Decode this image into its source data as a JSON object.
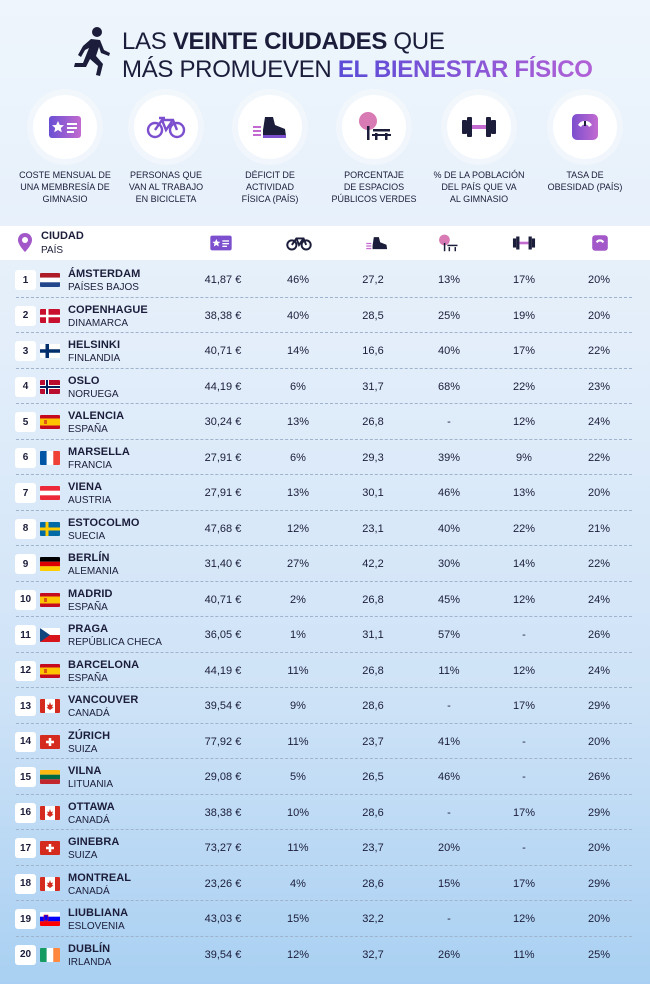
{
  "title": {
    "line1_pre": "LAS ",
    "line1_bold": "VEINTE CIUDADES",
    "line1_post": " QUE",
    "line2_pre": "MÁS PROMUEVEN ",
    "line2_accent": "EL BIENESTAR FÍSICO"
  },
  "metrics": [
    {
      "icon": "membership-card-icon",
      "line1": "COSTE MENSUAL DE",
      "line2": "UNA MEMBRESÍA DE",
      "line3": "GIMNASIO"
    },
    {
      "icon": "bicycle-icon",
      "line1": "PERSONAS QUE",
      "line2": "VAN AL TRABAJO",
      "line3": "EN BICICLETA"
    },
    {
      "icon": "sneaker-icon",
      "line1": "DÉFICIT DE",
      "line2": "ACTIVIDAD",
      "line3": "FÍSICA (PAÍS)"
    },
    {
      "icon": "park-icon",
      "line1": "PORCENTAJE",
      "line2": "DE ESPACIOS",
      "line3": "PÚBLICOS VERDES"
    },
    {
      "icon": "dumbbell-icon",
      "line1": "% DE LA POBLACIÓN",
      "line2": "DEL PAÍS QUE VA",
      "line3": "AL GIMNASIO"
    },
    {
      "icon": "scale-icon",
      "line1": "TASA DE",
      "line2": "OBESIDAD (PAÍS)",
      "line3": ""
    }
  ],
  "table": {
    "header_city": "CIUDAD",
    "header_country": "PAÍS",
    "colors": {
      "accent": "#8b4fc8",
      "pink": "#e07ab0",
      "dark": "#1b1d3a"
    },
    "rows": [
      {
        "rank": "1",
        "city": "ÁMSTERDAM",
        "country": "PAÍSES BAJOS",
        "flag": "nl",
        "gym_cost": "41,87 €",
        "bike": "46%",
        "deficit": "27,2",
        "green": "13%",
        "gym_pop": "17%",
        "obesity": "20%"
      },
      {
        "rank": "2",
        "city": "COPENHAGUE",
        "country": "DINAMARCA",
        "flag": "dk",
        "gym_cost": "38,38 €",
        "bike": "40%",
        "deficit": "28,5",
        "green": "25%",
        "gym_pop": "19%",
        "obesity": "20%"
      },
      {
        "rank": "3",
        "city": "HELSINKI",
        "country": "FINLANDIA",
        "flag": "fi",
        "gym_cost": "40,71 €",
        "bike": "14%",
        "deficit": "16,6",
        "green": "40%",
        "gym_pop": "17%",
        "obesity": "22%"
      },
      {
        "rank": "4",
        "city": "OSLO",
        "country": "NORUEGA",
        "flag": "no",
        "gym_cost": "44,19 €",
        "bike": "6%",
        "deficit": "31,7",
        "green": "68%",
        "gym_pop": "22%",
        "obesity": "23%"
      },
      {
        "rank": "5",
        "city": "VALENCIA",
        "country": "ESPAÑA",
        "flag": "es",
        "gym_cost": "30,24 €",
        "bike": "13%",
        "deficit": "26,8",
        "green": "-",
        "gym_pop": "12%",
        "obesity": "24%"
      },
      {
        "rank": "6",
        "city": "MARSELLA",
        "country": "FRANCIA",
        "flag": "fr",
        "gym_cost": "27,91 €",
        "bike": "6%",
        "deficit": "29,3",
        "green": "39%",
        "gym_pop": "9%",
        "obesity": "22%"
      },
      {
        "rank": "7",
        "city": "VIENA",
        "country": "AUSTRIA",
        "flag": "at",
        "gym_cost": "27,91 €",
        "bike": "13%",
        "deficit": "30,1",
        "green": "46%",
        "gym_pop": "13%",
        "obesity": "20%"
      },
      {
        "rank": "8",
        "city": "ESTOCOLMO",
        "country": "SUECIA",
        "flag": "se",
        "gym_cost": "47,68 €",
        "bike": "12%",
        "deficit": "23,1",
        "green": "40%",
        "gym_pop": "22%",
        "obesity": "21%"
      },
      {
        "rank": "9",
        "city": "BERLÍN",
        "country": "ALEMANIA",
        "flag": "de",
        "gym_cost": "31,40 €",
        "bike": "27%",
        "deficit": "42,2",
        "green": "30%",
        "gym_pop": "14%",
        "obesity": "22%"
      },
      {
        "rank": "10",
        "city": "MADRID",
        "country": "ESPAÑA",
        "flag": "es",
        "gym_cost": "40,71 €",
        "bike": "2%",
        "deficit": "26,8",
        "green": "45%",
        "gym_pop": "12%",
        "obesity": "24%"
      },
      {
        "rank": "11",
        "city": "PRAGA",
        "country": "REPÚBLICA CHECA",
        "flag": "cz",
        "gym_cost": "36,05 €",
        "bike": "1%",
        "deficit": "31,1",
        "green": "57%",
        "gym_pop": "-",
        "obesity": "26%"
      },
      {
        "rank": "12",
        "city": "BARCELONA",
        "country": "ESPAÑA",
        "flag": "es",
        "gym_cost": "44,19 €",
        "bike": "11%",
        "deficit": "26,8",
        "green": "11%",
        "gym_pop": "12%",
        "obesity": "24%"
      },
      {
        "rank": "13",
        "city": "VANCOUVER",
        "country": "CANADÁ",
        "flag": "ca",
        "gym_cost": "39,54 €",
        "bike": "9%",
        "deficit": "28,6",
        "green": "-",
        "gym_pop": "17%",
        "obesity": "29%"
      },
      {
        "rank": "14",
        "city": "ZÚRICH",
        "country": "SUIZA",
        "flag": "ch",
        "gym_cost": "77,92 €",
        "bike": "11%",
        "deficit": "23,7",
        "green": "41%",
        "gym_pop": "-",
        "obesity": "20%"
      },
      {
        "rank": "15",
        "city": "VILNA",
        "country": "LITUANIA",
        "flag": "lt",
        "gym_cost": "29,08 €",
        "bike": "5%",
        "deficit": "26,5",
        "green": "46%",
        "gym_pop": "-",
        "obesity": "26%"
      },
      {
        "rank": "16",
        "city": "OTTAWA",
        "country": "CANADÁ",
        "flag": "ca",
        "gym_cost": "38,38 €",
        "bike": "10%",
        "deficit": "28,6",
        "green": "-",
        "gym_pop": "17%",
        "obesity": "29%"
      },
      {
        "rank": "17",
        "city": "GINEBRA",
        "country": "SUIZA",
        "flag": "ch",
        "gym_cost": "73,27 €",
        "bike": "11%",
        "deficit": "23,7",
        "green": "20%",
        "gym_pop": "-",
        "obesity": "20%"
      },
      {
        "rank": "18",
        "city": "MONTREAL",
        "country": "CANADÁ",
        "flag": "ca",
        "gym_cost": "23,26 €",
        "bike": "4%",
        "deficit": "28,6",
        "green": "15%",
        "gym_pop": "17%",
        "obesity": "29%"
      },
      {
        "rank": "19",
        "city": "LIUBLIANA",
        "country": "ESLOVENIA",
        "flag": "si",
        "gym_cost": "43,03 €",
        "bike": "15%",
        "deficit": "32,2",
        "green": "-",
        "gym_pop": "12%",
        "obesity": "20%"
      },
      {
        "rank": "20",
        "city": "DUBLÍN",
        "country": "IRLANDA",
        "flag": "ie",
        "gym_cost": "39,54 €",
        "bike": "12%",
        "deficit": "32,7",
        "green": "26%",
        "gym_pop": "11%",
        "obesity": "25%"
      }
    ]
  }
}
